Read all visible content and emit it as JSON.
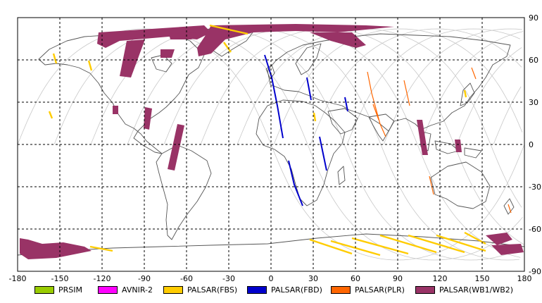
{
  "map": {
    "x_ticks": [
      "-180",
      "-150",
      "-120",
      "-90",
      "-60",
      "-30",
      "0",
      "30",
      "60",
      "90",
      "120",
      "150",
      "180"
    ],
    "y_ticks": [
      "90",
      "60",
      "30",
      "0",
      "-30",
      "-60",
      "-90"
    ],
    "x_range": [
      -180,
      180
    ],
    "y_range": [
      -90,
      90
    ],
    "grid": true,
    "colors": {
      "land_outline": "#555555",
      "orbit_track": "#c8c8c8",
      "grid": "#000000"
    }
  },
  "legend": {
    "items": [
      {
        "label": "PRSIM",
        "color": "#99cc00"
      },
      {
        "label": "AVNIR-2",
        "color": "#ff00ff"
      },
      {
        "label": "PALSAR(FBS)",
        "color": "#ffcc00"
      },
      {
        "label": "PALSAR(FBD)",
        "color": "#0000cc"
      },
      {
        "label": "PALSAR(PLR)",
        "color": "#ff6600"
      },
      {
        "label": "PALSAR(WB1/WB2)",
        "color": "#993366"
      }
    ]
  }
}
